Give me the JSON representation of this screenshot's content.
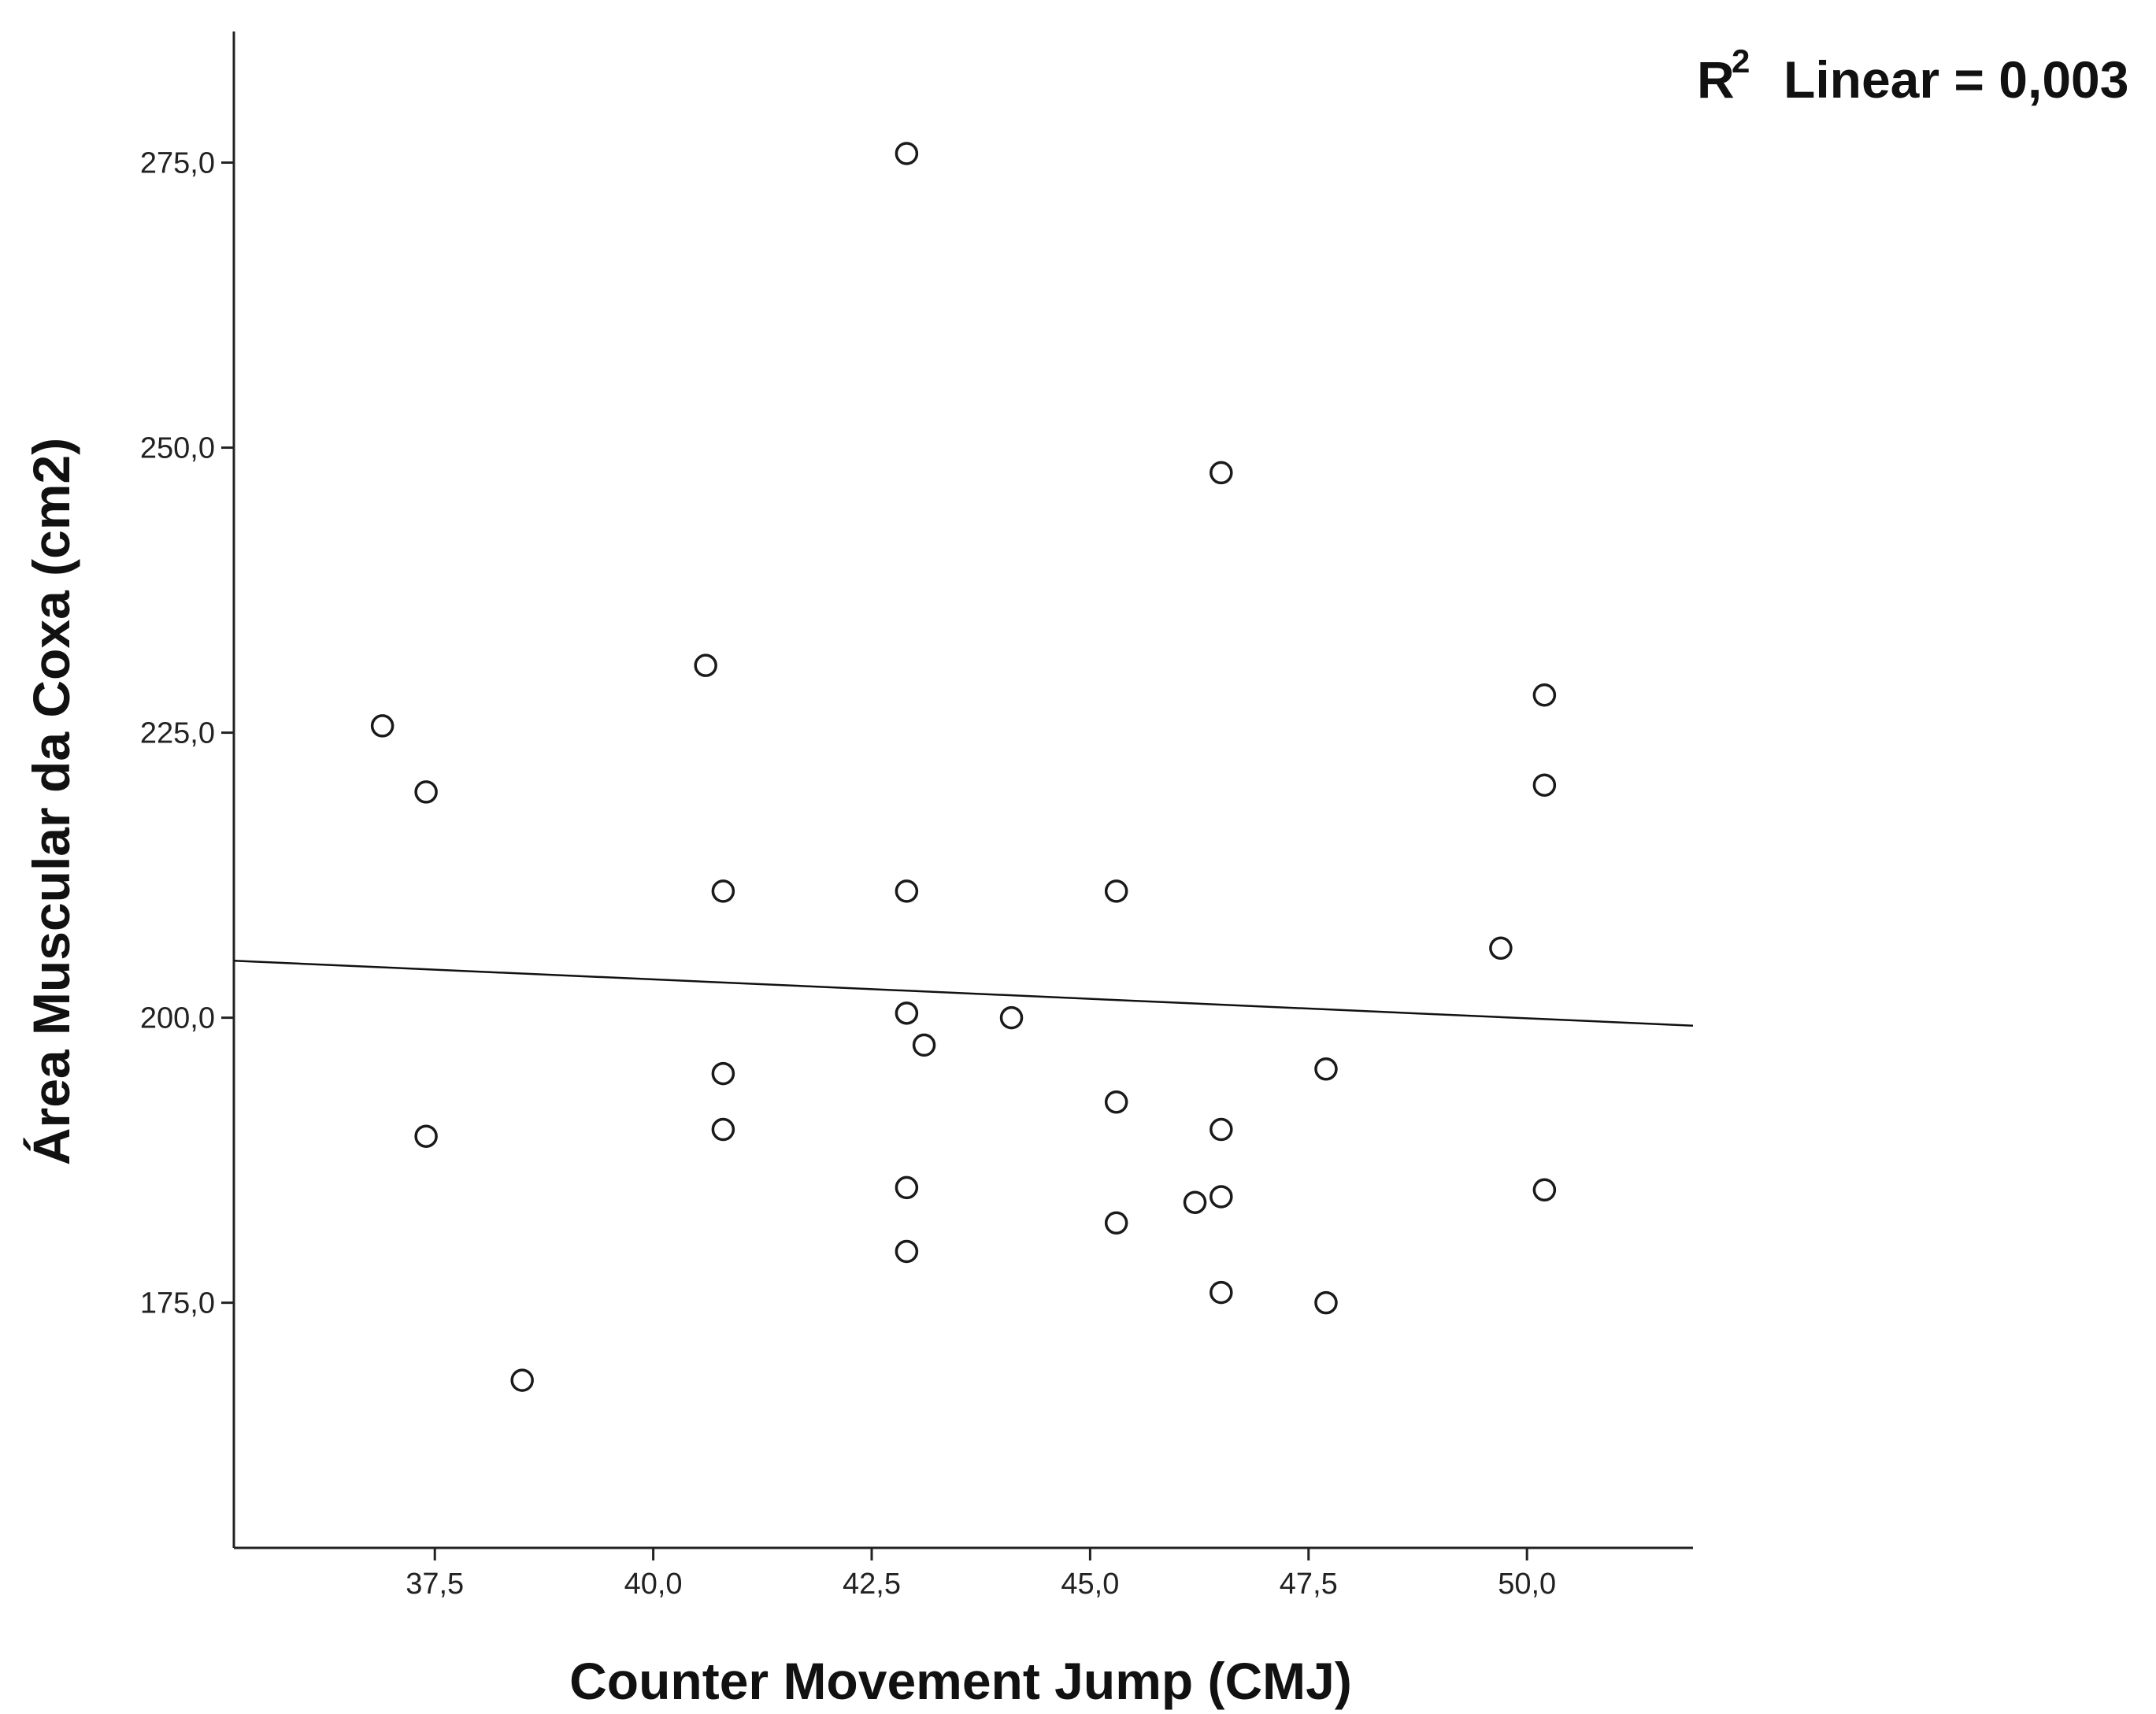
{
  "chart_data": {
    "type": "scatter",
    "title": "",
    "xlabel": "Counter Movement Jump (CMJ)",
    "ylabel": "Área Muscular da Coxa (cm2)",
    "xlim": [
      35.2,
      51.9
    ],
    "ylim": [
      153.5,
      286.5
    ],
    "x_ticks": [
      37.5,
      40.0,
      42.5,
      45.0,
      47.5,
      50.0
    ],
    "x_tick_labels": [
      "37,5",
      "40,0",
      "42,5",
      "45,0",
      "47,5",
      "50,0"
    ],
    "y_ticks": [
      175,
      200,
      225,
      250,
      275
    ],
    "y_tick_labels": [
      "175,0",
      "200,0",
      "225,0",
      "250,0",
      "275,0"
    ],
    "grid": false,
    "legend": "none",
    "fit_line": {
      "label_prefix": "R",
      "label_superscript": "2",
      "label_suffix": "Linear = 0,003",
      "x": [
        35.2,
        51.9
      ],
      "y": [
        205.0,
        199.3
      ]
    },
    "colors": {
      "marker_stroke": "#1a1a1a",
      "marker_fill": "#ffffff",
      "axis": "#222222",
      "fit_line": "#111111"
    },
    "points": [
      {
        "x": 36.9,
        "y": 225.6
      },
      {
        "x": 37.4,
        "y": 219.8
      },
      {
        "x": 37.4,
        "y": 189.6
      },
      {
        "x": 38.5,
        "y": 168.2
      },
      {
        "x": 40.6,
        "y": 230.9
      },
      {
        "x": 40.8,
        "y": 211.1
      },
      {
        "x": 40.8,
        "y": 195.1
      },
      {
        "x": 40.8,
        "y": 190.2
      },
      {
        "x": 42.9,
        "y": 275.8
      },
      {
        "x": 42.9,
        "y": 211.1
      },
      {
        "x": 42.9,
        "y": 200.4
      },
      {
        "x": 42.9,
        "y": 185.1
      },
      {
        "x": 42.9,
        "y": 179.5
      },
      {
        "x": 43.1,
        "y": 197.6
      },
      {
        "x": 44.1,
        "y": 200.0
      },
      {
        "x": 45.3,
        "y": 211.1
      },
      {
        "x": 45.3,
        "y": 192.6
      },
      {
        "x": 45.3,
        "y": 182.0
      },
      {
        "x": 46.2,
        "y": 183.8
      },
      {
        "x": 46.5,
        "y": 247.8
      },
      {
        "x": 46.5,
        "y": 190.2
      },
      {
        "x": 46.5,
        "y": 184.3
      },
      {
        "x": 46.5,
        "y": 175.9
      },
      {
        "x": 47.7,
        "y": 195.5
      },
      {
        "x": 47.7,
        "y": 175.0
      },
      {
        "x": 49.7,
        "y": 206.1
      },
      {
        "x": 50.2,
        "y": 228.3
      },
      {
        "x": 50.2,
        "y": 220.4
      },
      {
        "x": 50.2,
        "y": 184.9
      }
    ]
  }
}
